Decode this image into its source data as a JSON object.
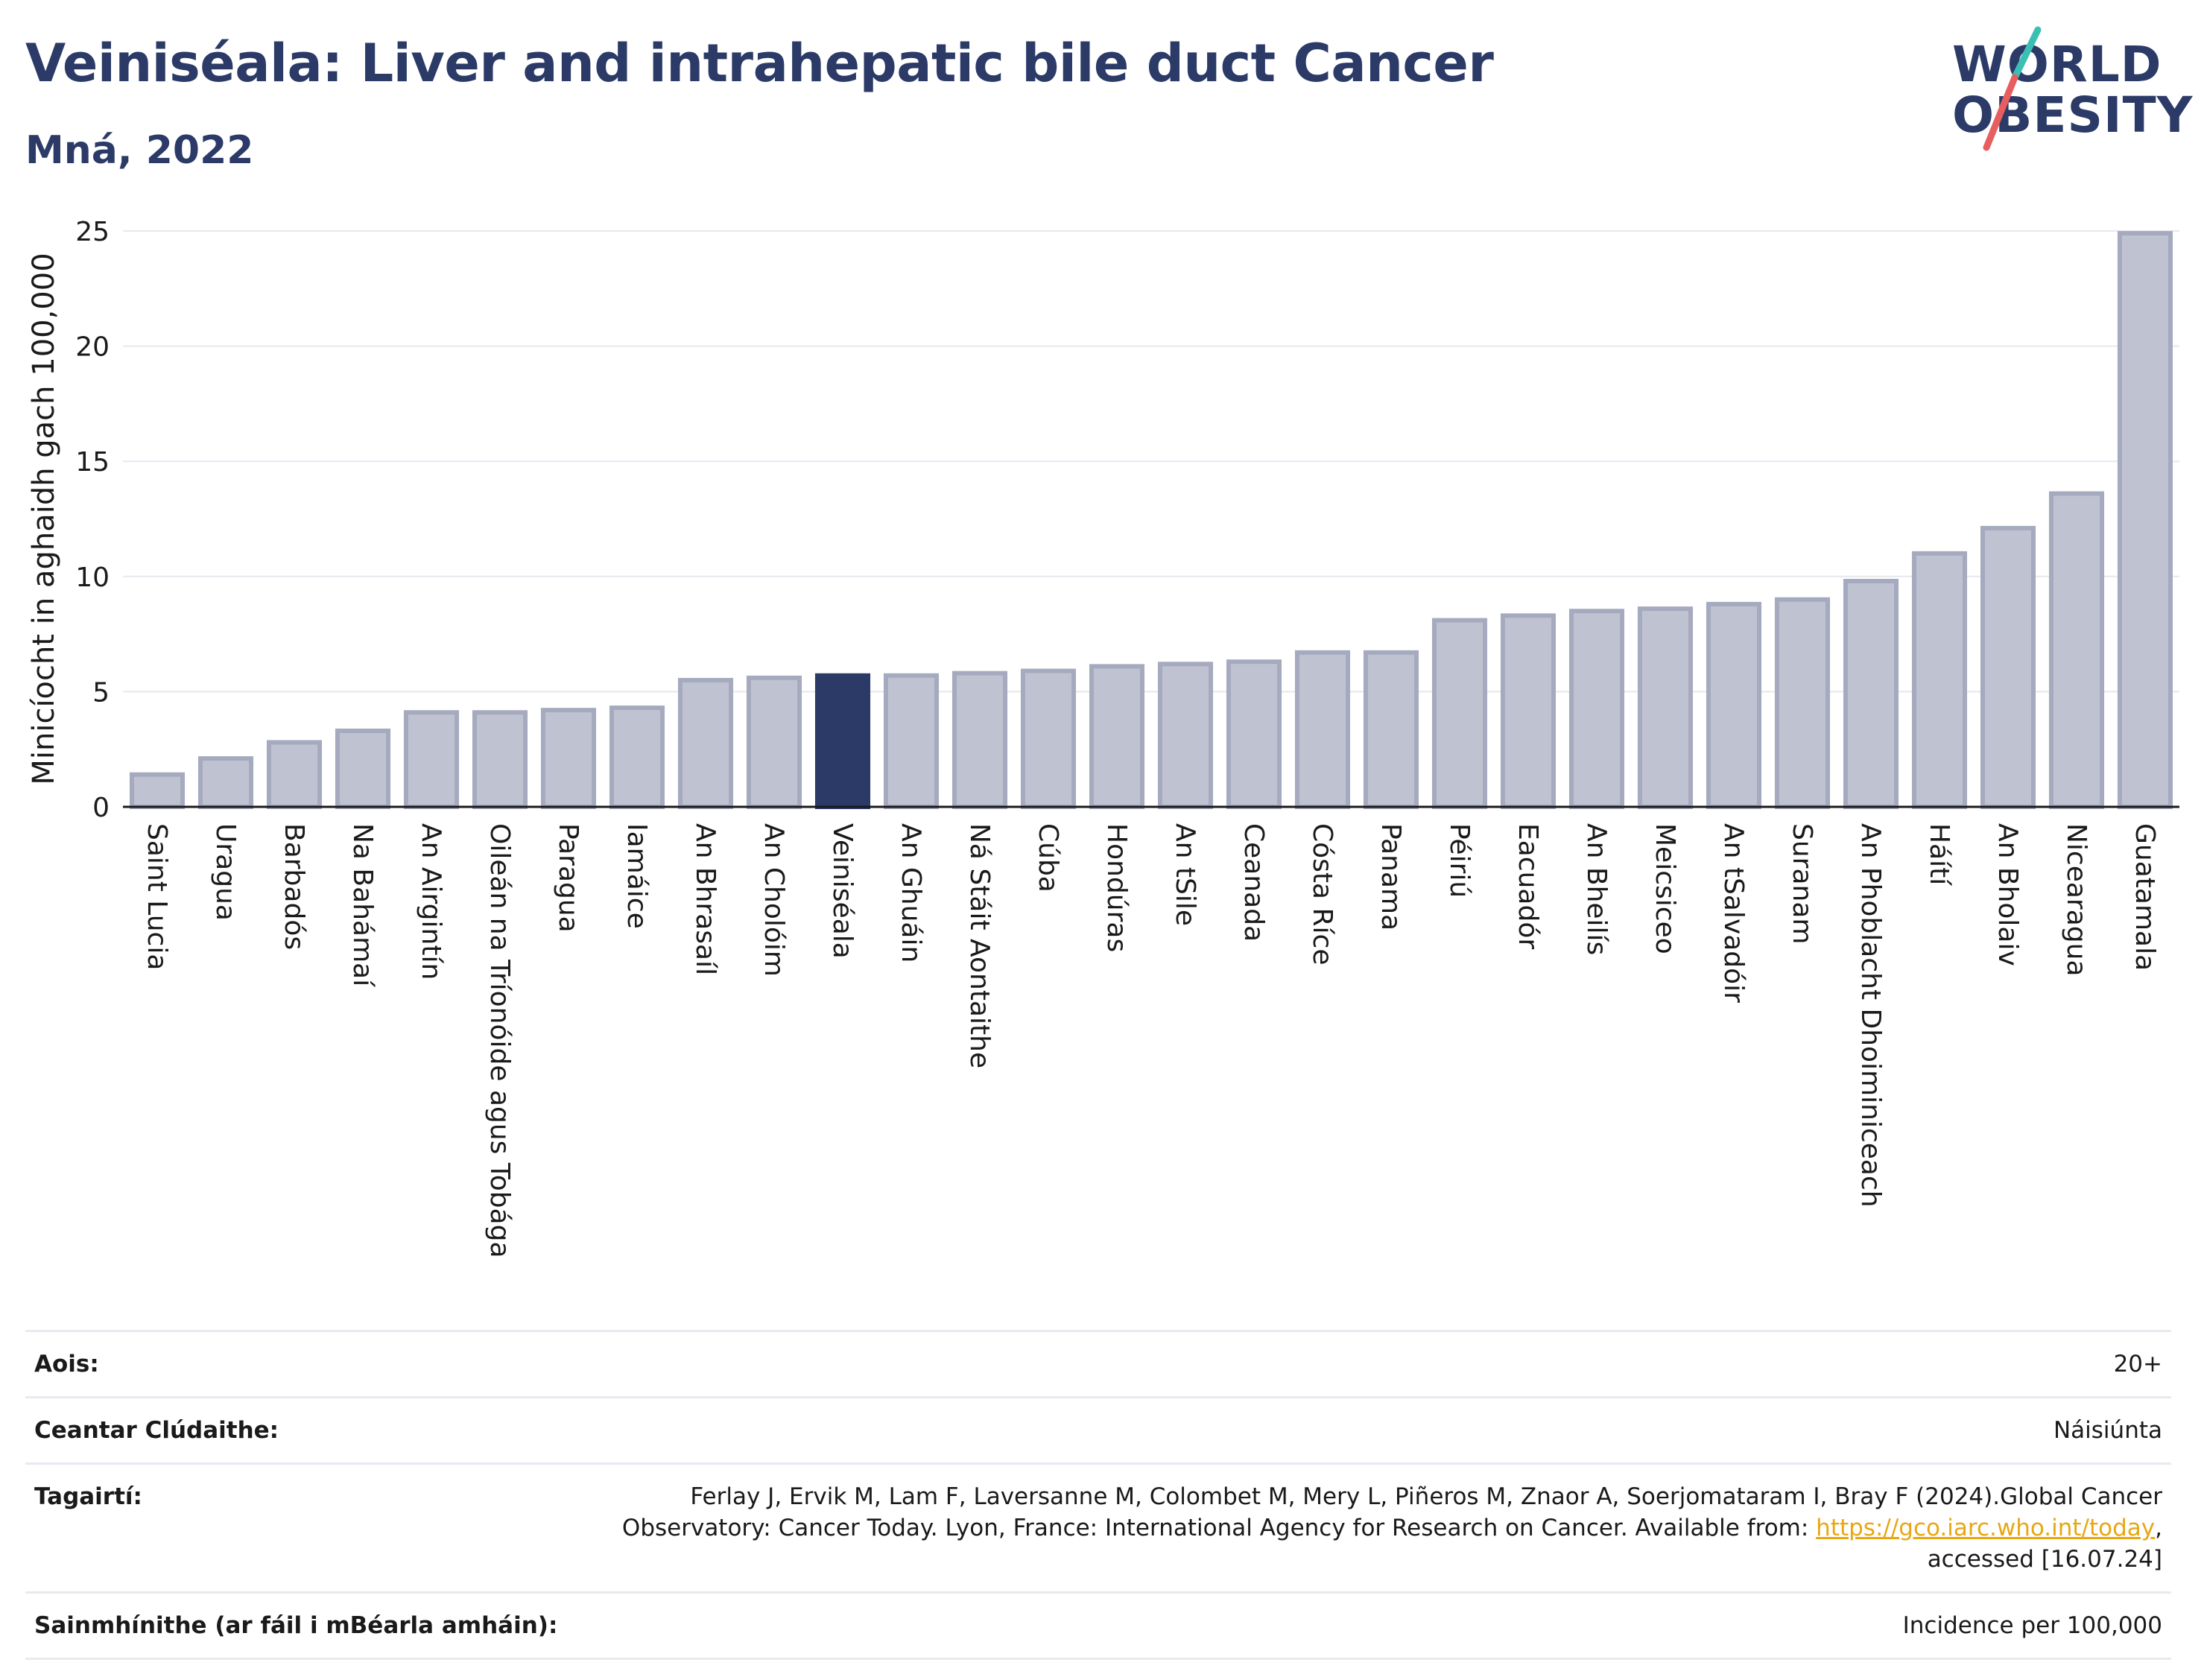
{
  "header": {
    "title": "Veiniséala: Liver and intrahepatic bile duct Cancer",
    "subtitle": "Mná, 2022"
  },
  "logo": {
    "line1": "WORLD",
    "line2": "OBESITY",
    "slash_colors": [
      "#3bbfb5",
      "#e85d5d"
    ]
  },
  "chart_data": {
    "type": "bar",
    "ylabel": "Minicíocht in aghaidh gach 100,000",
    "ylim": [
      0,
      25
    ],
    "yticks": [
      0,
      5,
      10,
      15,
      20,
      25
    ],
    "grid": true,
    "highlight": "Veiniséala",
    "colors": {
      "bar": "#bfc3d1",
      "bar_edge": "#a5aabe",
      "highlight": "#2b3a67"
    },
    "categories": [
      "Saint Lucia",
      "Uragua",
      "Barbadós",
      "Na Bahámaí",
      "An Airgintín",
      "Oileán na Tríonóide agus Tobága",
      "Paragua",
      "Iamáice",
      "An Bhrasaíl",
      "An Cholóim",
      "Veiniséala",
      "An Ghuáin",
      "Ná Stáit Aontaithe",
      "Cúba",
      "Hondúras",
      "An tSile",
      "Ceanada",
      "Cósta Ríce",
      "Panama",
      "Péiriú",
      "Eacuadór",
      "An Bheilís",
      "Meicsiceo",
      "An tSalvadóir",
      "Suranam",
      "An Phoblacht Dhoiminiceach",
      "Háítí",
      "An Bholaiv",
      "Nicearagua",
      "Guatamala"
    ],
    "values": [
      1.4,
      2.1,
      2.8,
      3.3,
      4.1,
      4.1,
      4.2,
      4.3,
      5.5,
      5.6,
      5.7,
      5.7,
      5.8,
      5.9,
      6.1,
      6.2,
      6.3,
      6.7,
      6.7,
      8.1,
      8.3,
      8.5,
      8.6,
      8.8,
      9.0,
      9.8,
      11.0,
      12.1,
      13.6,
      24.9
    ]
  },
  "meta": {
    "age_label": "Aois:",
    "age_value": "20+",
    "area_label": "Ceantar Clúdaithe:",
    "area_value": "Náisiúnta",
    "ref_label": "Tagairtí:",
    "ref_text_1": "Ferlay J, Ervik M, Lam F, Laversanne M, Colombet M, Mery L, Piñeros M, Znaor A, Soerjomataram I, Bray F (2024).Global Cancer Observatory: Cancer Today. Lyon, France: International Agency for Research on Cancer. Available from: ",
    "ref_link": "https://gco.iarc.who.int/today",
    "ref_text_2": ", accessed [16.07.24]",
    "def_label": "Sainmhínithe (ar fáil i mBéarla amháin):",
    "def_value": "Incidence per 100,000"
  }
}
